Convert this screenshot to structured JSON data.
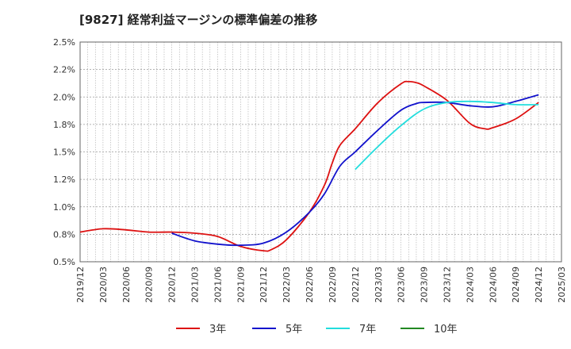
{
  "chart_data": {
    "type": "line",
    "title": "[9827]  経常利益マージンの標準偏差の推移",
    "xlabel": "",
    "ylabel": "",
    "ylim": [
      0.5,
      2.5
    ],
    "y_ticks": [
      "2.5%",
      "2.2%",
      "2.0%",
      "1.8%",
      "1.5%",
      "1.2%",
      "1.0%",
      "0.8%",
      "0.5%"
    ],
    "y_tick_values": [
      2.5,
      2.25,
      2.0,
      1.75,
      1.5,
      1.25,
      1.0,
      0.75,
      0.5
    ],
    "x_ticks": [
      "2019/12",
      "2020/03",
      "2020/06",
      "2020/09",
      "2020/12",
      "2021/03",
      "2021/06",
      "2021/09",
      "2021/12",
      "2022/03",
      "2022/06",
      "2022/09",
      "2022/12",
      "2023/03",
      "2023/06",
      "2023/09",
      "2023/12",
      "2024/03",
      "2024/06",
      "2024/09",
      "2024/12",
      "2025/03"
    ],
    "grid": true,
    "legend_position": "bottom",
    "series": [
      {
        "name": "3年",
        "color": "#dd1111",
        "points": [
          [
            "2019/12",
            0.77
          ],
          [
            "2020/03",
            0.8
          ],
          [
            "2020/06",
            0.79
          ],
          [
            "2020/09",
            0.77
          ],
          [
            "2020/12",
            0.77
          ],
          [
            "2021/03",
            0.76
          ],
          [
            "2021/06",
            0.73
          ],
          [
            "2021/09",
            0.64
          ],
          [
            "2021/12",
            0.6
          ],
          [
            "2022/01",
            0.61
          ],
          [
            "2022/03",
            0.7
          ],
          [
            "2022/06",
            0.95
          ],
          [
            "2022/08",
            1.2
          ],
          [
            "2022/09",
            1.4
          ],
          [
            "2022/10",
            1.56
          ],
          [
            "2022/12",
            1.71
          ],
          [
            "2023/03",
            1.95
          ],
          [
            "2023/06",
            2.12
          ],
          [
            "2023/07",
            2.14
          ],
          [
            "2023/08",
            2.13
          ],
          [
            "2023/09",
            2.1
          ],
          [
            "2023/12",
            1.97
          ],
          [
            "2024/03",
            1.76
          ],
          [
            "2024/05",
            1.71
          ],
          [
            "2024/06",
            1.72
          ],
          [
            "2024/09",
            1.8
          ],
          [
            "2024/12",
            1.95
          ]
        ]
      },
      {
        "name": "5年",
        "color": "#1111cc",
        "points": [
          [
            "2020/12",
            0.76
          ],
          [
            "2021/03",
            0.69
          ],
          [
            "2021/06",
            0.66
          ],
          [
            "2021/09",
            0.65
          ],
          [
            "2021/12",
            0.67
          ],
          [
            "2022/03",
            0.77
          ],
          [
            "2022/06",
            0.95
          ],
          [
            "2022/08",
            1.12
          ],
          [
            "2022/10",
            1.37
          ],
          [
            "2022/12",
            1.5
          ],
          [
            "2023/03",
            1.7
          ],
          [
            "2023/06",
            1.88
          ],
          [
            "2023/08",
            1.94
          ],
          [
            "2023/09",
            1.95
          ],
          [
            "2023/12",
            1.95
          ],
          [
            "2024/03",
            1.92
          ],
          [
            "2024/06",
            1.91
          ],
          [
            "2024/09",
            1.96
          ],
          [
            "2024/12",
            2.02
          ]
        ]
      },
      {
        "name": "7年",
        "color": "#22dddd",
        "points": [
          [
            "2022/12",
            1.34
          ],
          [
            "2023/03",
            1.55
          ],
          [
            "2023/06",
            1.74
          ],
          [
            "2023/09",
            1.89
          ],
          [
            "2023/12",
            1.95
          ],
          [
            "2024/03",
            1.96
          ],
          [
            "2024/06",
            1.95
          ],
          [
            "2024/09",
            1.93
          ],
          [
            "2024/12",
            1.93
          ]
        ]
      },
      {
        "name": "10年",
        "color": "#228822",
        "points": []
      }
    ]
  }
}
